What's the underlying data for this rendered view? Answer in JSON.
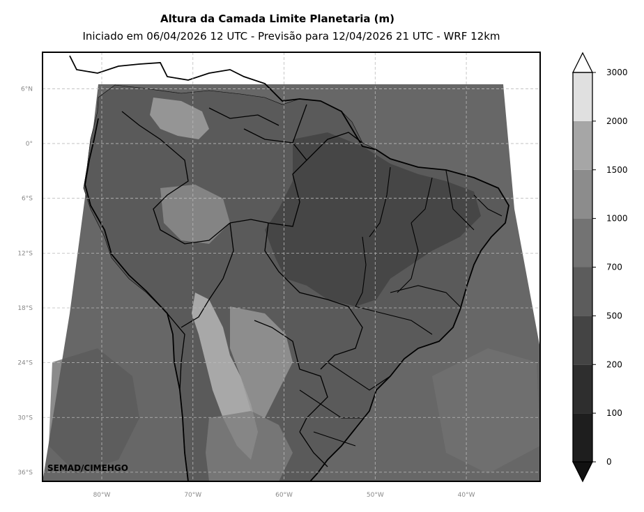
{
  "title": "Altura da Camada Limite Planetaria (m)",
  "subtitle": "Iniciado em 06/04/2026 12 UTC - Previsão para 12/04/2026 21 UTC - WRF 12km",
  "credit": "SEMAD/CIMEHGO",
  "map": {
    "lon_range": [
      -86.5,
      -31.9
    ],
    "lat_range": [
      -37.0,
      10.0
    ],
    "lat_ticks": [
      {
        "value": 6,
        "label": "6°N"
      },
      {
        "value": 0,
        "label": "0°"
      },
      {
        "value": -6,
        "label": "6°S"
      },
      {
        "value": -12,
        "label": "12°S"
      },
      {
        "value": -18,
        "label": "18°S"
      },
      {
        "value": -24,
        "label": "24°S"
      },
      {
        "value": -30,
        "label": "30°S"
      },
      {
        "value": -36,
        "label": "36°S"
      }
    ],
    "lon_ticks": [
      {
        "value": -80,
        "label": "80°W"
      },
      {
        "value": -70,
        "label": "70°W"
      },
      {
        "value": -60,
        "label": "60°W"
      },
      {
        "value": -50,
        "label": "50°W"
      },
      {
        "value": -40,
        "label": "40°W"
      }
    ],
    "gridlines": true
  },
  "colorbar": {
    "levels": [
      "0",
      "100",
      "200",
      "500",
      "700",
      "1000",
      "1500",
      "2000",
      "3000"
    ],
    "colors": [
      "#1e1e1e",
      "#2e2e2e",
      "#444444",
      "#5c5c5c",
      "#737373",
      "#8c8c8c",
      "#a6a6a6",
      "#e0e0e0"
    ],
    "extend": "both",
    "under_color": "#111111",
    "over_color": "#ffffff"
  },
  "colors": {
    "ocean": "#676767",
    "land": "#5a5a5a",
    "coast": "#000000",
    "grid": "#bbbbbb"
  }
}
